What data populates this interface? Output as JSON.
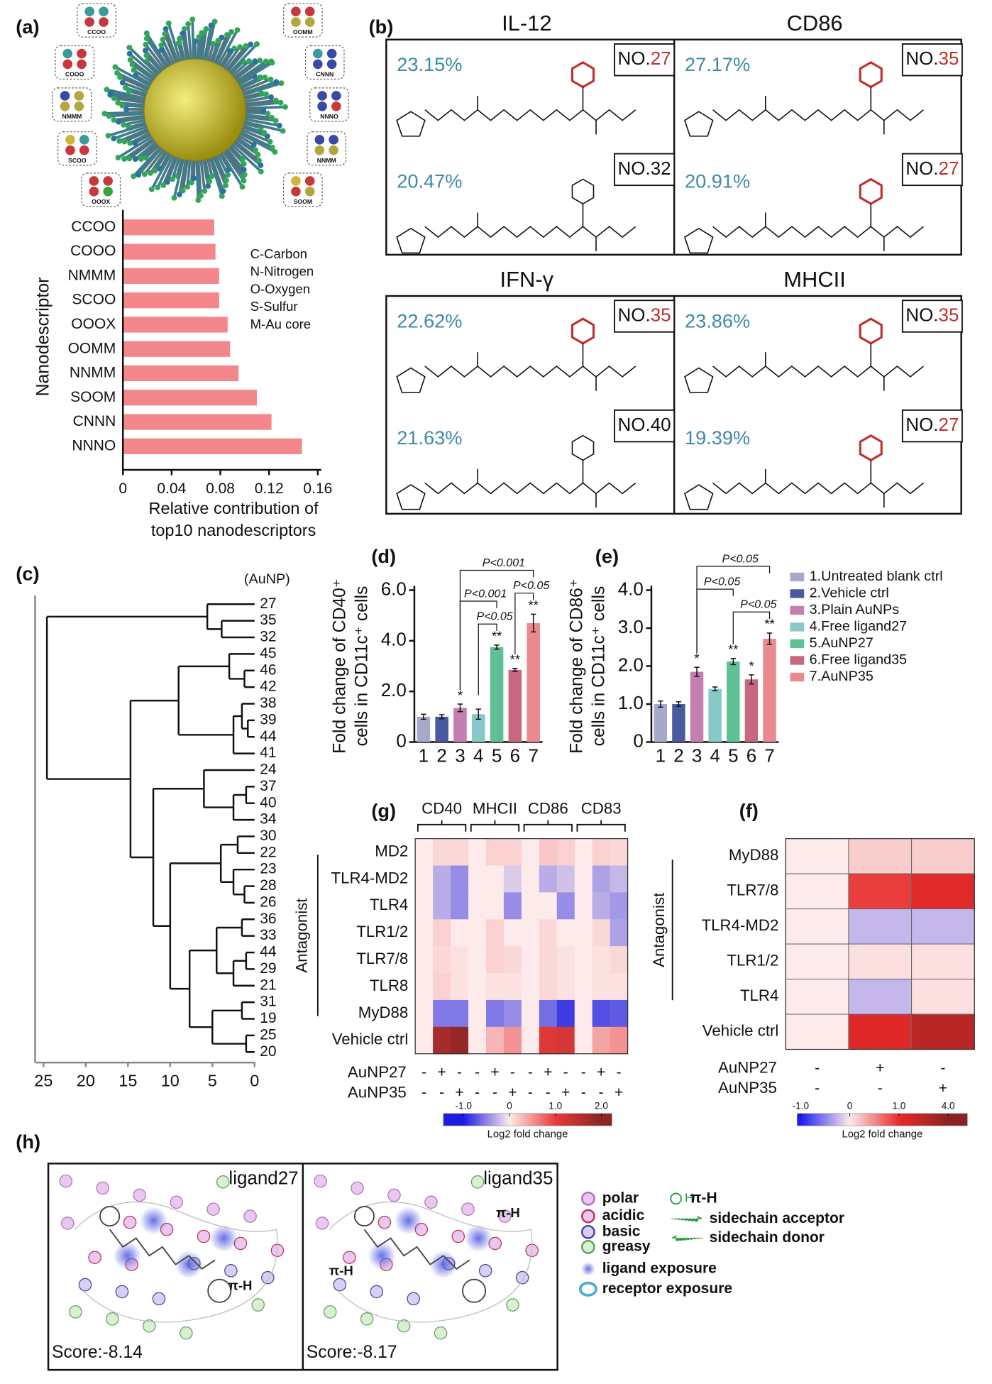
{
  "panel_labels": [
    "(a)",
    "(b)",
    "(c)",
    "(d)",
    "(e)",
    "(g)",
    "(f)",
    "(h)"
  ],
  "particle": {
    "descriptors": [
      "CCOO",
      "OOMM",
      "COOO",
      "CNNN",
      "NMMM",
      "NNNO",
      "SCOO",
      "NNMM",
      "OOOX",
      "SOOM"
    ]
  },
  "chart_data": [
    {
      "type": "bar",
      "orientation": "horizontal",
      "categories": [
        "CCOO",
        "COOO",
        "NMMM",
        "SCOO",
        "OOOX",
        "OOMM",
        "NNMM",
        "SOOM",
        "CNNN",
        "NNNO"
      ],
      "values": [
        0.075,
        0.076,
        0.079,
        0.079,
        0.086,
        0.088,
        0.095,
        0.11,
        0.122,
        0.147
      ],
      "color": "#f4878b",
      "xlim": [
        0,
        0.16
      ],
      "xticks": [
        0,
        0.04,
        0.08,
        0.12,
        0.16
      ],
      "ylabel": "Nanodescriptor",
      "xlabel": [
        "Relative contribution of",
        "top10 nanodescriptors"
      ],
      "annotations": [
        "C-Carbon",
        "N-Nitrogen",
        "O-Oxygen",
        "S-Sulfur",
        "M-Au core"
      ]
    },
    {
      "type": "bar",
      "categories": [
        "1",
        "2",
        "3",
        "4",
        "5",
        "6",
        "7"
      ],
      "values": [
        1.0,
        1.0,
        1.35,
        1.1,
        3.75,
        2.85,
        4.7
      ],
      "errors": [
        0.1,
        0.08,
        0.15,
        0.2,
        0.08,
        0.06,
        0.35
      ],
      "colors": [
        "#a6a9c9",
        "#4a5a9e",
        "#c47fb0",
        "#88c9c8",
        "#5fbf95",
        "#c8687f",
        "#ea8a8f"
      ],
      "significance": [
        null,
        null,
        "*",
        null,
        "**",
        "**",
        "**"
      ],
      "comparisons": [
        {
          "pair": [
            "3",
            "7"
          ],
          "label": "P<0.001"
        },
        {
          "pair": [
            "6",
            "7"
          ],
          "label": "P<0.05"
        },
        {
          "pair": [
            "3",
            "5"
          ],
          "label": "P<0.001"
        },
        {
          "pair": [
            "4",
            "5"
          ],
          "label": "P<0.05"
        }
      ],
      "ylim": [
        0,
        6
      ],
      "yticks": [
        0,
        {
          "value": 2,
          "label": "2.0"
        },
        {
          "value": 4,
          "label": "4.0"
        },
        {
          "value": 6,
          "label": "6.0"
        }
      ],
      "ylabel": [
        "Fold change of CD40⁺",
        "cells in CD11c⁺ cells"
      ]
    },
    {
      "type": "bar",
      "categories": [
        "1",
        "2",
        "3",
        "4",
        "5",
        "6",
        "7"
      ],
      "values": [
        1.0,
        1.0,
        1.85,
        1.4,
        2.12,
        1.65,
        2.72
      ],
      "errors": [
        0.08,
        0.06,
        0.12,
        0.05,
        0.08,
        0.12,
        0.15
      ],
      "colors": [
        "#a6a9c9",
        "#4a5a9e",
        "#c47fb0",
        "#88c9c8",
        "#5fbf95",
        "#c8687f",
        "#ea8a8f"
      ],
      "significance": [
        null,
        null,
        "*",
        null,
        "**",
        "*",
        "**"
      ],
      "comparisons": [
        {
          "pair": [
            "3",
            "7"
          ],
          "label": "P<0.05"
        },
        {
          "pair": [
            "5",
            "7"
          ],
          "label": "P<0.05"
        },
        {
          "pair": [
            "3",
            "5"
          ],
          "label": "P<0.05"
        }
      ],
      "ylim": [
        0,
        4
      ],
      "yticks": [
        0,
        {
          "value": 1,
          "label": "1.0"
        },
        {
          "value": 2,
          "label": "2.0"
        },
        {
          "value": 3,
          "label": "3.0"
        },
        {
          "value": 4,
          "label": "4.0"
        }
      ],
      "ylabel": [
        "Fold change of CD86⁺",
        "cells in CD11c⁺ cells"
      ],
      "legend": [
        "1.Untreated blank ctrl",
        "2.Vehicle ctrl",
        "3.Plain AuNPs",
        "4.Free ligand27",
        "5.AuNP27",
        "6.Free ligand35",
        "7.AuNP35"
      ]
    },
    {
      "type": "heatmap",
      "rows": [
        "MD2",
        "TLR4-MD2",
        "TLR4",
        "TLR1/2",
        "TLR7/8",
        "TLR8",
        "MyD88",
        "Vehicle ctrl"
      ],
      "column_groups": [
        "CD40",
        "MHCII",
        "CD86",
        "CD83"
      ],
      "row_group_label": "Antagonist",
      "treatments": [
        {
          "name": "AuNP27",
          "signs": [
            "-",
            "+",
            "-",
            "-",
            "+",
            "-",
            "-",
            "+",
            "-",
            "-",
            "+",
            "-"
          ]
        },
        {
          "name": "AuNP35",
          "signs": [
            "-",
            "-",
            "+",
            "-",
            "-",
            "+",
            "-",
            "-",
            "+",
            "-",
            "-",
            "+"
          ]
        }
      ],
      "values": [
        [
          0,
          0.1,
          0.1,
          0,
          0.15,
          0.15,
          0,
          0.2,
          0.15,
          0,
          0.15,
          0.1
        ],
        [
          0,
          -0.3,
          -0.45,
          0,
          0,
          -0.15,
          0,
          -0.3,
          -0.2,
          0,
          -0.35,
          -0.25
        ],
        [
          0,
          -0.3,
          -0.45,
          0,
          0,
          -0.45,
          0,
          0,
          -0.45,
          0,
          -0.3,
          -0.4
        ],
        [
          0,
          0.15,
          0,
          0,
          0.15,
          0,
          0,
          0.1,
          0,
          0,
          0.1,
          -0.35
        ],
        [
          0,
          0.1,
          0.05,
          0,
          0.15,
          0.1,
          0,
          0.1,
          0.05,
          0,
          0.05,
          0.1
        ],
        [
          0,
          0.15,
          0.05,
          0,
          0.05,
          0.05,
          0,
          0.1,
          0.05,
          0,
          0.05,
          0.05
        ],
        [
          0,
          -0.55,
          -0.55,
          0,
          -0.55,
          -0.45,
          0,
          -0.6,
          -0.85,
          0,
          -0.75,
          -0.7
        ],
        [
          0,
          1.7,
          1.9,
          0,
          0.3,
          0.5,
          0,
          1.1,
          1.2,
          0,
          0.4,
          0.5
        ]
      ],
      "colorbar": {
        "label": "Log2 fold change",
        "ticks": [
          {
            "value": -1,
            "label": "-1.0"
          },
          0,
          {
            "value": 1,
            "label": "1.0"
          },
          {
            "value": 2,
            "label": "2.0"
          }
        ],
        "color_stops": [
          {
            "value": -1,
            "color": "#1c1ce0"
          },
          {
            "value": 0,
            "color": "#fdeaea"
          },
          {
            "value": 1,
            "color": "#e83a3a"
          },
          {
            "value": 2,
            "color": "#8b2525"
          }
        ]
      }
    },
    {
      "type": "heatmap",
      "rows": [
        "MyD88",
        "TLR7/8",
        "TLR4-MD2",
        "TLR1/2",
        "TLR4",
        "Vehicle ctrl"
      ],
      "row_group_label": "Antagonist",
      "treatments": [
        {
          "name": "AuNP27",
          "signs": [
            "-",
            "+",
            "-"
          ]
        },
        {
          "name": "AuNP35",
          "signs": [
            "-",
            "-",
            "+"
          ]
        }
      ],
      "values": [
        [
          0,
          0.15,
          0.15
        ],
        [
          0,
          0.9,
          1.2
        ],
        [
          0,
          -0.25,
          -0.25
        ],
        [
          0,
          0.05,
          0.05
        ],
        [
          0,
          -0.25,
          0.05
        ],
        [
          0,
          1.3,
          2.5
        ]
      ],
      "colorbar": {
        "label": "Log2 fold change",
        "ticks": [
          {
            "value": -1,
            "label": "-1.0"
          },
          0,
          {
            "value": 1,
            "label": "1.0"
          },
          {
            "value": 4,
            "label": "4.0"
          }
        ],
        "color_stops": [
          {
            "value": -1,
            "color": "#1c1cee"
          },
          {
            "value": 0,
            "color": "#fdeaea"
          },
          {
            "value": 1,
            "color": "#e82a2a"
          },
          {
            "value": 4,
            "color": "#8b2222"
          }
        ]
      }
    },
    {
      "type": "dendrogram",
      "axis_title": "(AuNP)",
      "xlim": [
        26,
        0
      ],
      "xticks": [
        25,
        20,
        15,
        10,
        5,
        0
      ],
      "tree": {
        "height": 24.6,
        "children": [
          {
            "height": 5.6,
            "children": [
              "27",
              {
                "height": 3.9,
                "children": [
                  "35",
                  "32"
                ]
              }
            ]
          },
          {
            "height": 14.7,
            "children": [
              {
                "height": 9,
                "children": [
                  {
                    "height": 3,
                    "children": [
                      "45",
                      {
                        "height": 1.2,
                        "children": [
                          "46",
                          "42"
                        ]
                      }
                    ]
                  },
                  {
                    "height": 2.5,
                    "children": [
                      {
                        "height": 1.5,
                        "children": [
                          "38",
                          {
                            "height": 0.8,
                            "children": [
                              "39",
                              "44"
                            ]
                          }
                        ]
                      },
                      "41"
                    ]
                  }
                ]
              },
              {
                "height": 12,
                "children": [
                  {
                    "height": 6,
                    "children": [
                      "24",
                      {
                        "height": 2.5,
                        "children": [
                          {
                            "height": 1,
                            "children": [
                              "37",
                              "40"
                            ]
                          },
                          "34"
                        ]
                      }
                    ]
                  },
                  {
                    "height": 10,
                    "children": [
                      {
                        "height": 4,
                        "children": [
                          {
                            "height": 2,
                            "children": [
                              "30",
                              "22"
                            ]
                          },
                          {
                            "height": 2.5,
                            "children": [
                              "23",
                              {
                                "height": 1.2,
                                "children": [
                                  "28",
                                  "26"
                                ]
                              }
                            ]
                          }
                        ]
                      },
                      {
                        "height": 7.7,
                        "children": [
                          {
                            "height": 4.5,
                            "children": [
                              {
                                "height": 1.5,
                                "children": [
                                  "36",
                                  "33"
                                ]
                              },
                              {
                                "height": 2.5,
                                "children": [
                                  {
                                    "height": 1,
                                    "children": [
                                      "44",
                                      "29"
                                    ]
                                  },
                                  "21"
                                ]
                              }
                            ]
                          },
                          {
                            "height": 5,
                            "children": [
                              {
                                "height": 1.5,
                                "children": [
                                  "31",
                                  "19"
                                ]
                              },
                              {
                                "height": 1,
                                "children": [
                                  "25",
                                  "20"
                                ]
                              }
                            ]
                          }
                        ]
                      }
                    ]
                  }
                ]
              }
            ]
          }
        ]
      }
    }
  ],
  "panel_b": [
    {
      "title": "IL-12",
      "entries": [
        {
          "percent": "23.15%",
          "prefix": "NO.",
          "number": "27",
          "number_color": "#c0302a"
        },
        {
          "percent": "20.47%",
          "prefix": "NO.",
          "number": "32",
          "number_color": "#111111"
        }
      ]
    },
    {
      "title": "CD86",
      "entries": [
        {
          "percent": "27.17%",
          "prefix": "NO.",
          "number": "35",
          "number_color": "#c0302a"
        },
        {
          "percent": "20.91%",
          "prefix": "NO.",
          "number": "27",
          "number_color": "#c0302a"
        }
      ]
    },
    {
      "title": "IFN-γ",
      "entries": [
        {
          "percent": "22.62%",
          "prefix": "NO.",
          "number": "35",
          "number_color": "#c0302a"
        },
        {
          "percent": "21.63%",
          "prefix": "NO.",
          "number": "40",
          "number_color": "#111111"
        }
      ]
    },
    {
      "title": "MHCII",
      "entries": [
        {
          "percent": "23.86%",
          "prefix": "NO.",
          "number": "35",
          "number_color": "#c0302a"
        },
        {
          "percent": "19.39%",
          "prefix": "NO.",
          "number": "27",
          "number_color": "#c0302a"
        }
      ]
    }
  ],
  "panel_h": {
    "boxes": [
      {
        "title": "ligand27",
        "score": "Score:-8.14",
        "pi_labels": [
          "π-H"
        ]
      },
      {
        "title": "ligand35",
        "score": "Score:-8.17",
        "pi_labels": [
          "π-H",
          "π-H"
        ]
      }
    ],
    "legend": [
      "polar",
      "acidic",
      "basic",
      "greasy",
      "π-H",
      "sidechain acceptor",
      "sidechain donor",
      "ligand exposure",
      "receptor exposure"
    ]
  }
}
